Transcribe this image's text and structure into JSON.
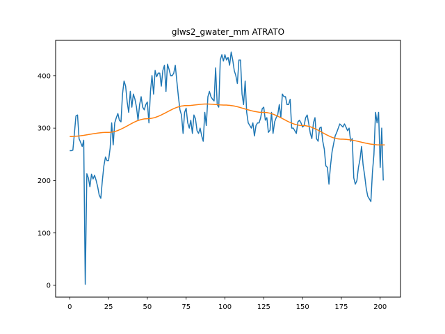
{
  "chart_data": {
    "type": "line",
    "title": "glws2_gwater_mm ATRATO",
    "xlabel": "",
    "ylabel": "",
    "xlim": [
      -9.1,
      213.1
    ],
    "ylim": [
      -22.5,
      467.5
    ],
    "xticks": [
      0,
      25,
      50,
      75,
      100,
      125,
      150,
      175,
      200
    ],
    "yticks": [
      0,
      100,
      200,
      300,
      400
    ],
    "grid": false,
    "legend": "none",
    "colors": {
      "raw": "#1f77b4",
      "fit": "#ff7f0e"
    },
    "series": [
      {
        "values": [
          257,
          257,
          258,
          290,
          323,
          325,
          280,
          273,
          265,
          277,
          2,
          213,
          205,
          188,
          212,
          203,
          210,
          200,
          188,
          172,
          166,
          200,
          228,
          245,
          238,
          238,
          262,
          310,
          268,
          310,
          320,
          328,
          315,
          312,
          365,
          390,
          380,
          350,
          330,
          370,
          340,
          365,
          355,
          340,
          315,
          345,
          360,
          340,
          335,
          345,
          350,
          310,
          370,
          400,
          365,
          410,
          398,
          405,
          405,
          380,
          410,
          420,
          370,
          422,
          412,
          400,
          400,
          405,
          420,
          390,
          360,
          335,
          325,
          290,
          330,
          338,
          310,
          300,
          315,
          290,
          325,
          318,
          295,
          290,
          300,
          285,
          275,
          330,
          305,
          360,
          370,
          360,
          355,
          352,
          415,
          345,
          340,
          430,
          440,
          428,
          440,
          430,
          435,
          420,
          445,
          430,
          410,
          400,
          385,
          430,
          430,
          365,
          345,
          390,
          330,
          310,
          305,
          300,
          310,
          285,
          305,
          310,
          310,
          320,
          337,
          340,
          315,
          320,
          292,
          296,
          330,
          290,
          312,
          320,
          325,
          345,
          320,
          365,
          360,
          360,
          345,
          345,
          355,
          300,
          300,
          295,
          290,
          312,
          315,
          310,
          302,
          305,
          320,
          325,
          308,
          290,
          280,
          310,
          320,
          280,
          275,
          300,
          302,
          275,
          260,
          228,
          225,
          193,
          228,
          255,
          270,
          285,
          292,
          300,
          308,
          305,
          302,
          308,
          302,
          295,
          300,
          275,
          280,
          205,
          193,
          200,
          225,
          240,
          265,
          230,
          210,
          185,
          170,
          165,
          160,
          215,
          250,
          330,
          310,
          330,
          225,
          300,
          200
        ],
        "start_x": 0
      },
      {
        "fit": "sinusoid",
        "x": [
          0,
          25,
          50,
          75,
          88,
          100,
          125,
          150,
          175,
          200,
          203
        ],
        "values": [
          284,
          292,
          318,
          343,
          346,
          344,
          330,
          305,
          279,
          268,
          268
        ]
      }
    ]
  }
}
